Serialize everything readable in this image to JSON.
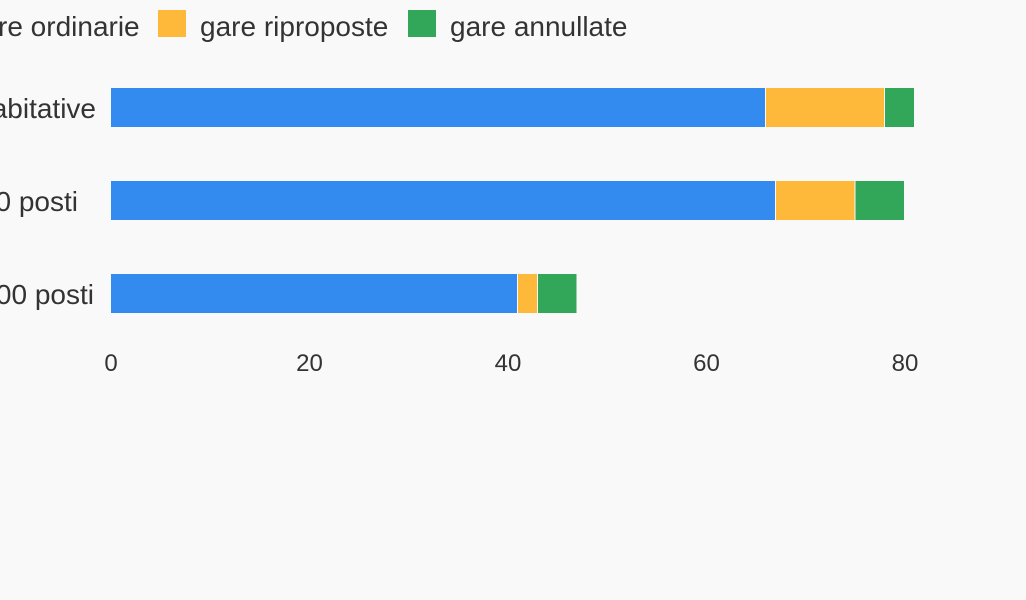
{
  "chart_data": {
    "type": "bar",
    "orientation": "horizontal",
    "stacked": true,
    "title": "",
    "xlabel": "",
    "ylabel": "",
    "categories": [
      "abitative",
      "0 posti",
      "00 posti"
    ],
    "series": [
      {
        "name": "re ordinarie",
        "color": "#338bef",
        "values": [
          66,
          67,
          41
        ]
      },
      {
        "name": "gare riproposte",
        "color": "#ffb93a",
        "values": [
          12,
          8,
          2
        ]
      },
      {
        "name": "gare annullate",
        "color": "#32a75a",
        "values": [
          3,
          5,
          4
        ]
      }
    ],
    "x_ticks": [
      "0",
      "20",
      "40",
      "60",
      "80"
    ],
    "xlim": [
      0,
      80
    ],
    "grid": false,
    "legend_position": "top"
  }
}
